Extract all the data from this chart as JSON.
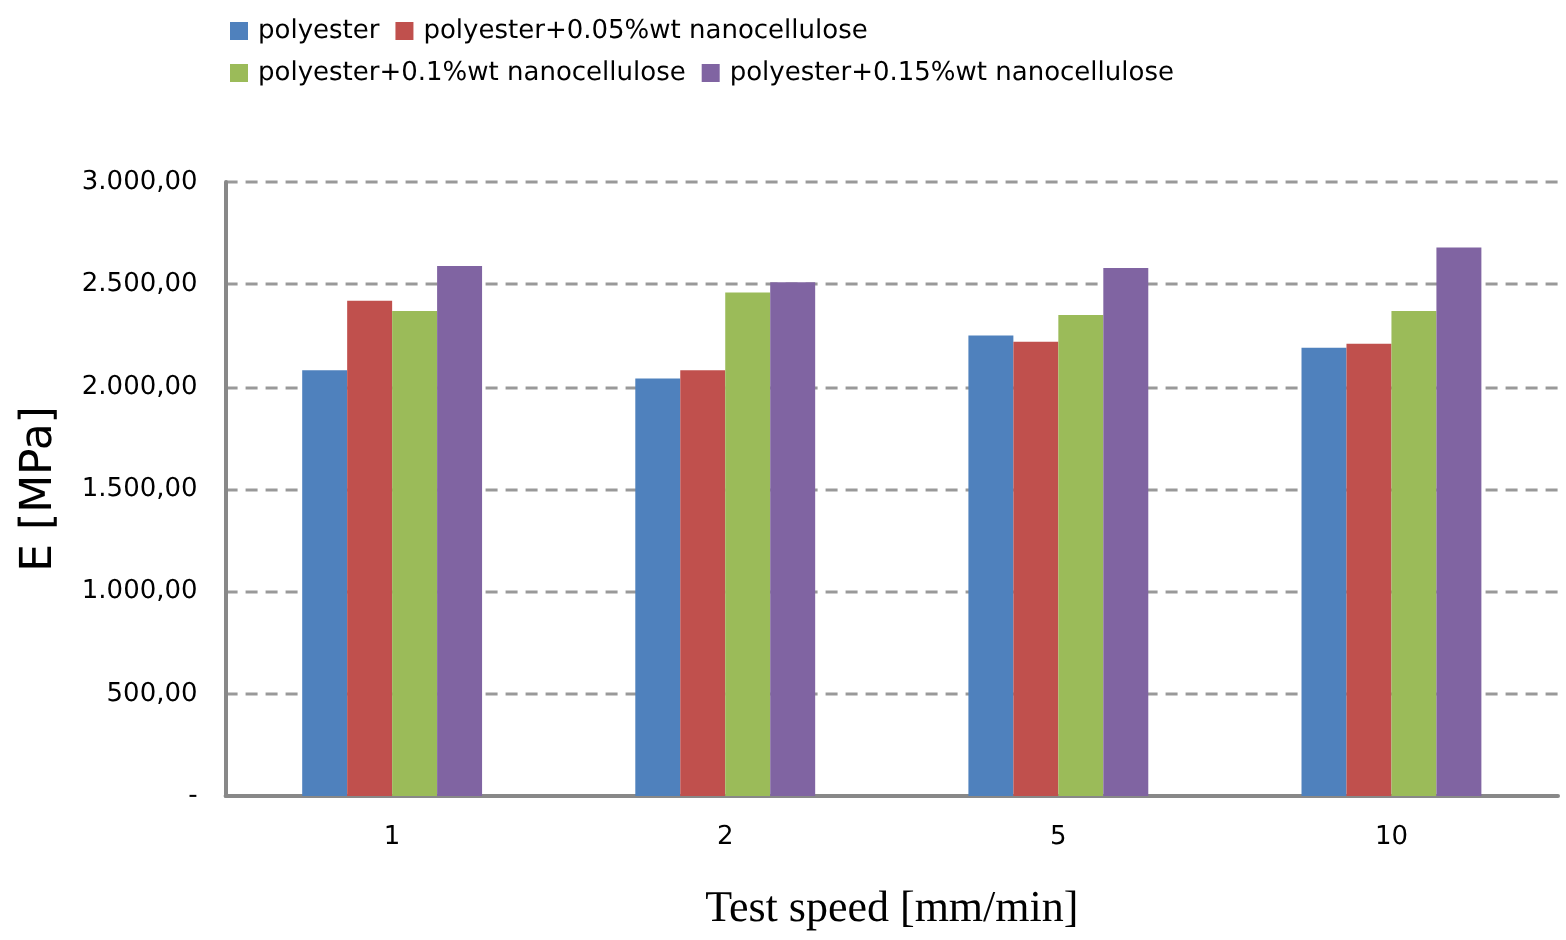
{
  "chart_data": {
    "type": "bar",
    "xlabel": "Test speed [mm/min]",
    "ylabel": "E [MPa]",
    "categories": [
      "1",
      "2",
      "5",
      "10"
    ],
    "series": [
      {
        "name": "polyester",
        "color": "#4f81bd",
        "values": [
          2080,
          2040,
          2250,
          2190
        ]
      },
      {
        "name": "polyester+0.05%wt nanocellulose",
        "color": "#c0504d",
        "values": [
          2420,
          2080,
          2220,
          2210
        ]
      },
      {
        "name": "polyester+0.1%wt nanocellulose",
        "color": "#9bbb59",
        "values": [
          2370,
          2460,
          2350,
          2370
        ]
      },
      {
        "name": "polyester+0.15%wt nanocellulose",
        "color": "#8064a2",
        "values": [
          2590,
          2510,
          2580,
          2680
        ]
      }
    ],
    "ylim": [
      0,
      3000
    ],
    "yticks": [
      {
        "value": 0,
        "label": "-"
      },
      {
        "value": 500,
        "label": "500,00"
      },
      {
        "value": 1000,
        "label": "1.000,00"
      },
      {
        "value": 1500,
        "label": "1.500,00"
      },
      {
        "value": 2000,
        "label": "2.000,00"
      },
      {
        "value": 2500,
        "label": "2.500,00"
      },
      {
        "value": 3000,
        "label": "3.000,00"
      }
    ],
    "grid": "y",
    "legend": "top"
  }
}
